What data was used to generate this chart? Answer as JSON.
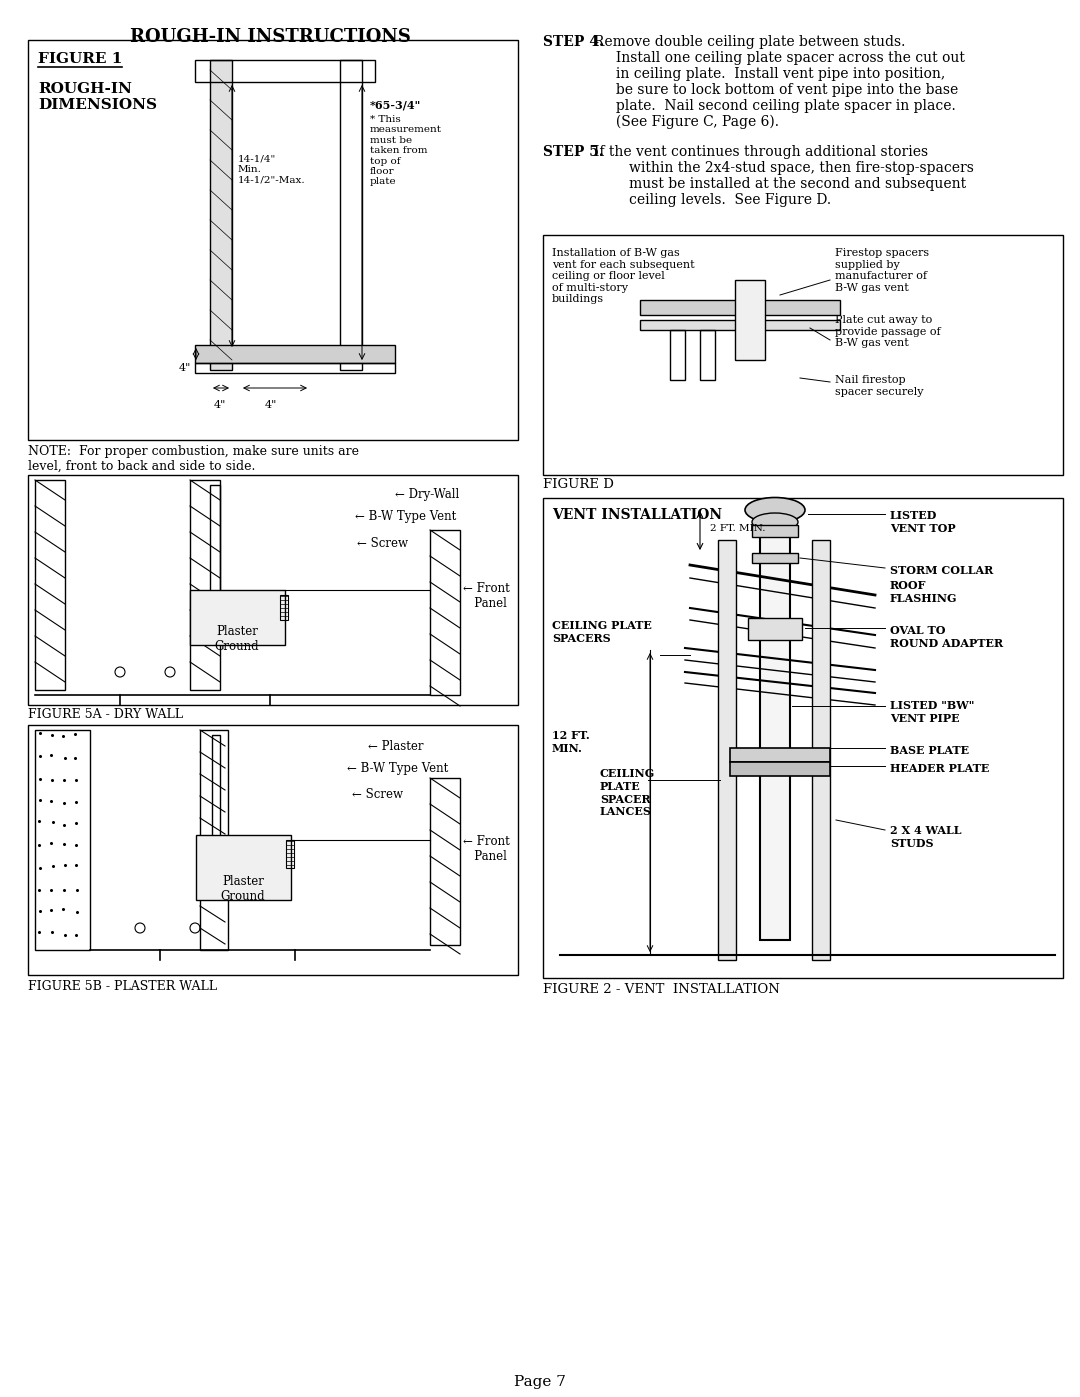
{
  "title": "ROUGH-IN INSTRUCTIONS",
  "page_number": "Page 7",
  "background_color": "#ffffff",
  "text_color": "#000000",
  "step4_bold": "STEP 4.",
  "step5_bold": "STEP 5.",
  "figure_d_label": "FIGURE D",
  "figure_2_label": "FIGURE 2 - VENT  INSTALLATION",
  "figure_5a_label": "FIGURE 5A - DRY WALL",
  "figure_5b_label": "FIGURE 5B - PLASTER WALL",
  "note_text": "NOTE:  For proper combustion, make sure units are\nlevel, front to back and side to side.",
  "figure1_title": "FIGURE 1",
  "figure1_subtitle": "ROUGH-IN\nDIMENSIONS"
}
